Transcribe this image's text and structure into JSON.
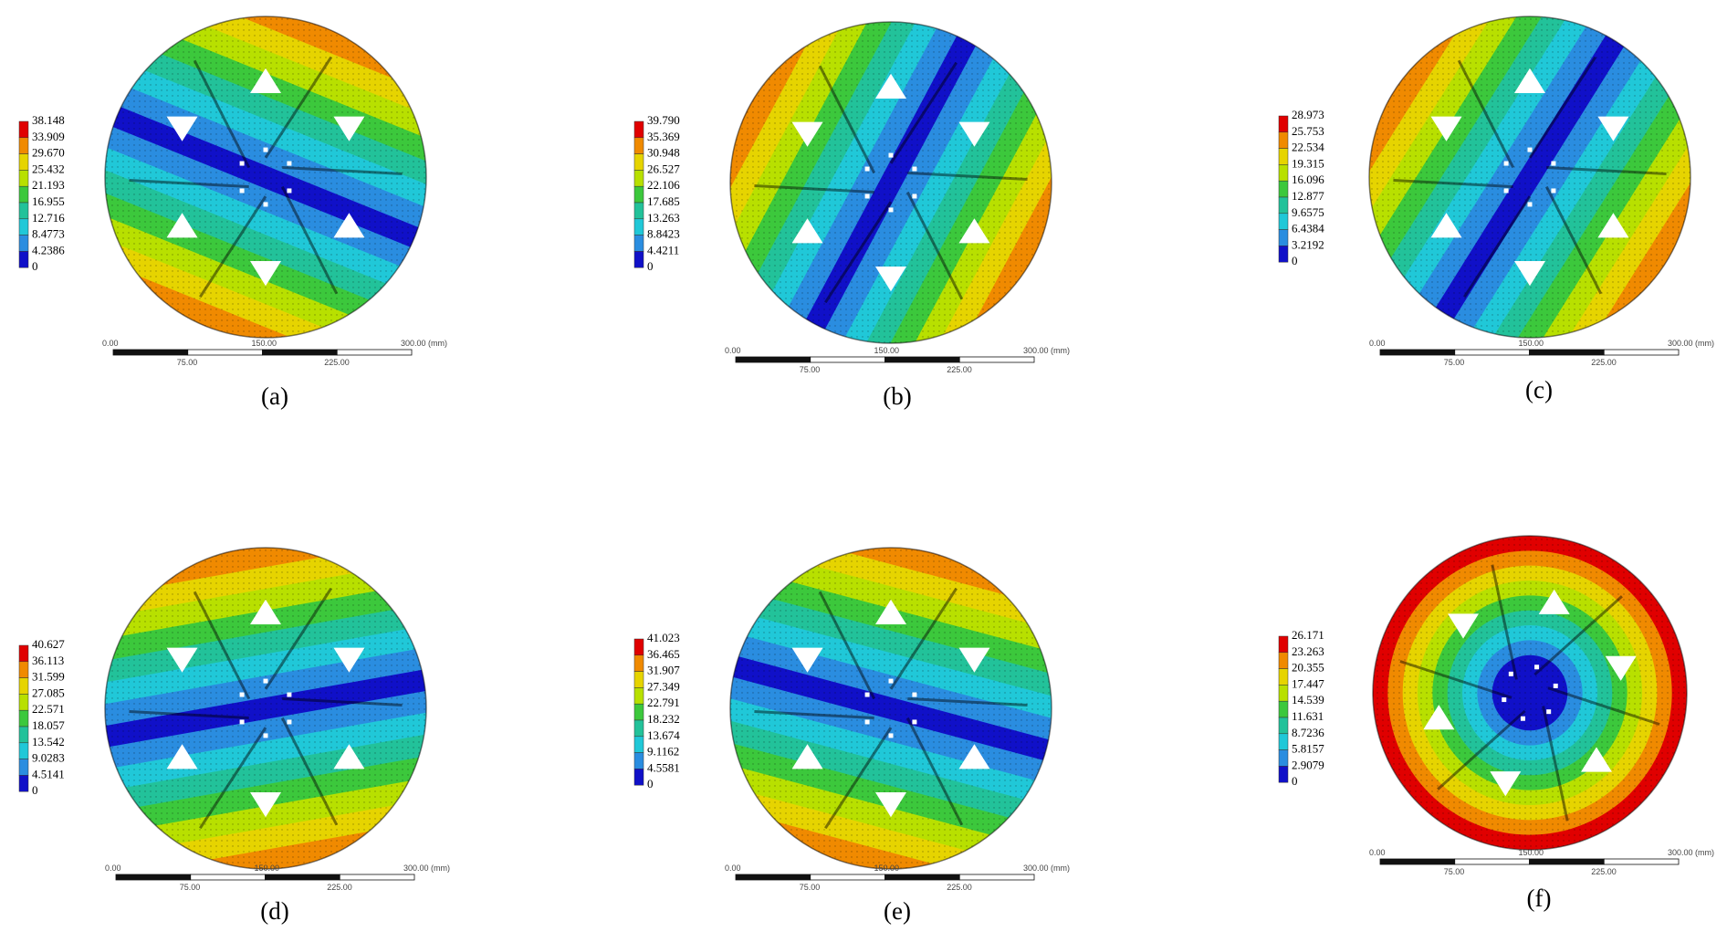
{
  "panels": [
    {
      "caption": "(a)",
      "legend": [
        "38.148",
        "33.909",
        "29.670",
        "25.432",
        "21.193",
        "16.955",
        "12.716",
        "8.4773",
        "4.2386",
        "0"
      ],
      "scale": [
        "0.00",
        "150.00",
        "300.00 (mm)",
        "75.00",
        "225.00"
      ]
    },
    {
      "caption": "(b)",
      "legend": [
        "39.790",
        "35.369",
        "30.948",
        "26.527",
        "22.106",
        "17.685",
        "13.263",
        "8.8423",
        "4.4211",
        "0"
      ],
      "scale": [
        "0.00",
        "150.00",
        "300.00 (mm)",
        "75.00",
        "225.00"
      ]
    },
    {
      "caption": "(c)",
      "legend": [
        "28.973",
        "25.753",
        "22.534",
        "19.315",
        "16.096",
        "12.877",
        "9.6575",
        "6.4384",
        "3.2192",
        "0"
      ],
      "scale": [
        "0.00",
        "150.00",
        "300.00 (mm)",
        "75.00",
        "225.00"
      ]
    },
    {
      "caption": "(d)",
      "legend": [
        "40.627",
        "36.113",
        "31.599",
        "27.085",
        "22.571",
        "18.057",
        "13.542",
        "9.0283",
        "4.5141",
        "0"
      ],
      "scale": [
        "0.00",
        "150.00",
        "300.00 (mm)",
        "75.00",
        "225.00"
      ]
    },
    {
      "caption": "(e)",
      "legend": [
        "41.023",
        "36.465",
        "31.907",
        "27.349",
        "22.791",
        "18.232",
        "13.674",
        "9.1162",
        "4.5581",
        "0"
      ],
      "scale": [
        "0.00",
        "150.00",
        "300.00 (mm)",
        "75.00",
        "225.00"
      ]
    },
    {
      "caption": "(f)",
      "legend": [
        "26.171",
        "23.263",
        "20.355",
        "17.447",
        "14.539",
        "11.631",
        "8.7236",
        "5.8157",
        "2.9079",
        "0"
      ],
      "scale": [
        "0.00",
        "150.00",
        "300.00 (mm)",
        "75.00",
        "225.00"
      ]
    }
  ]
}
